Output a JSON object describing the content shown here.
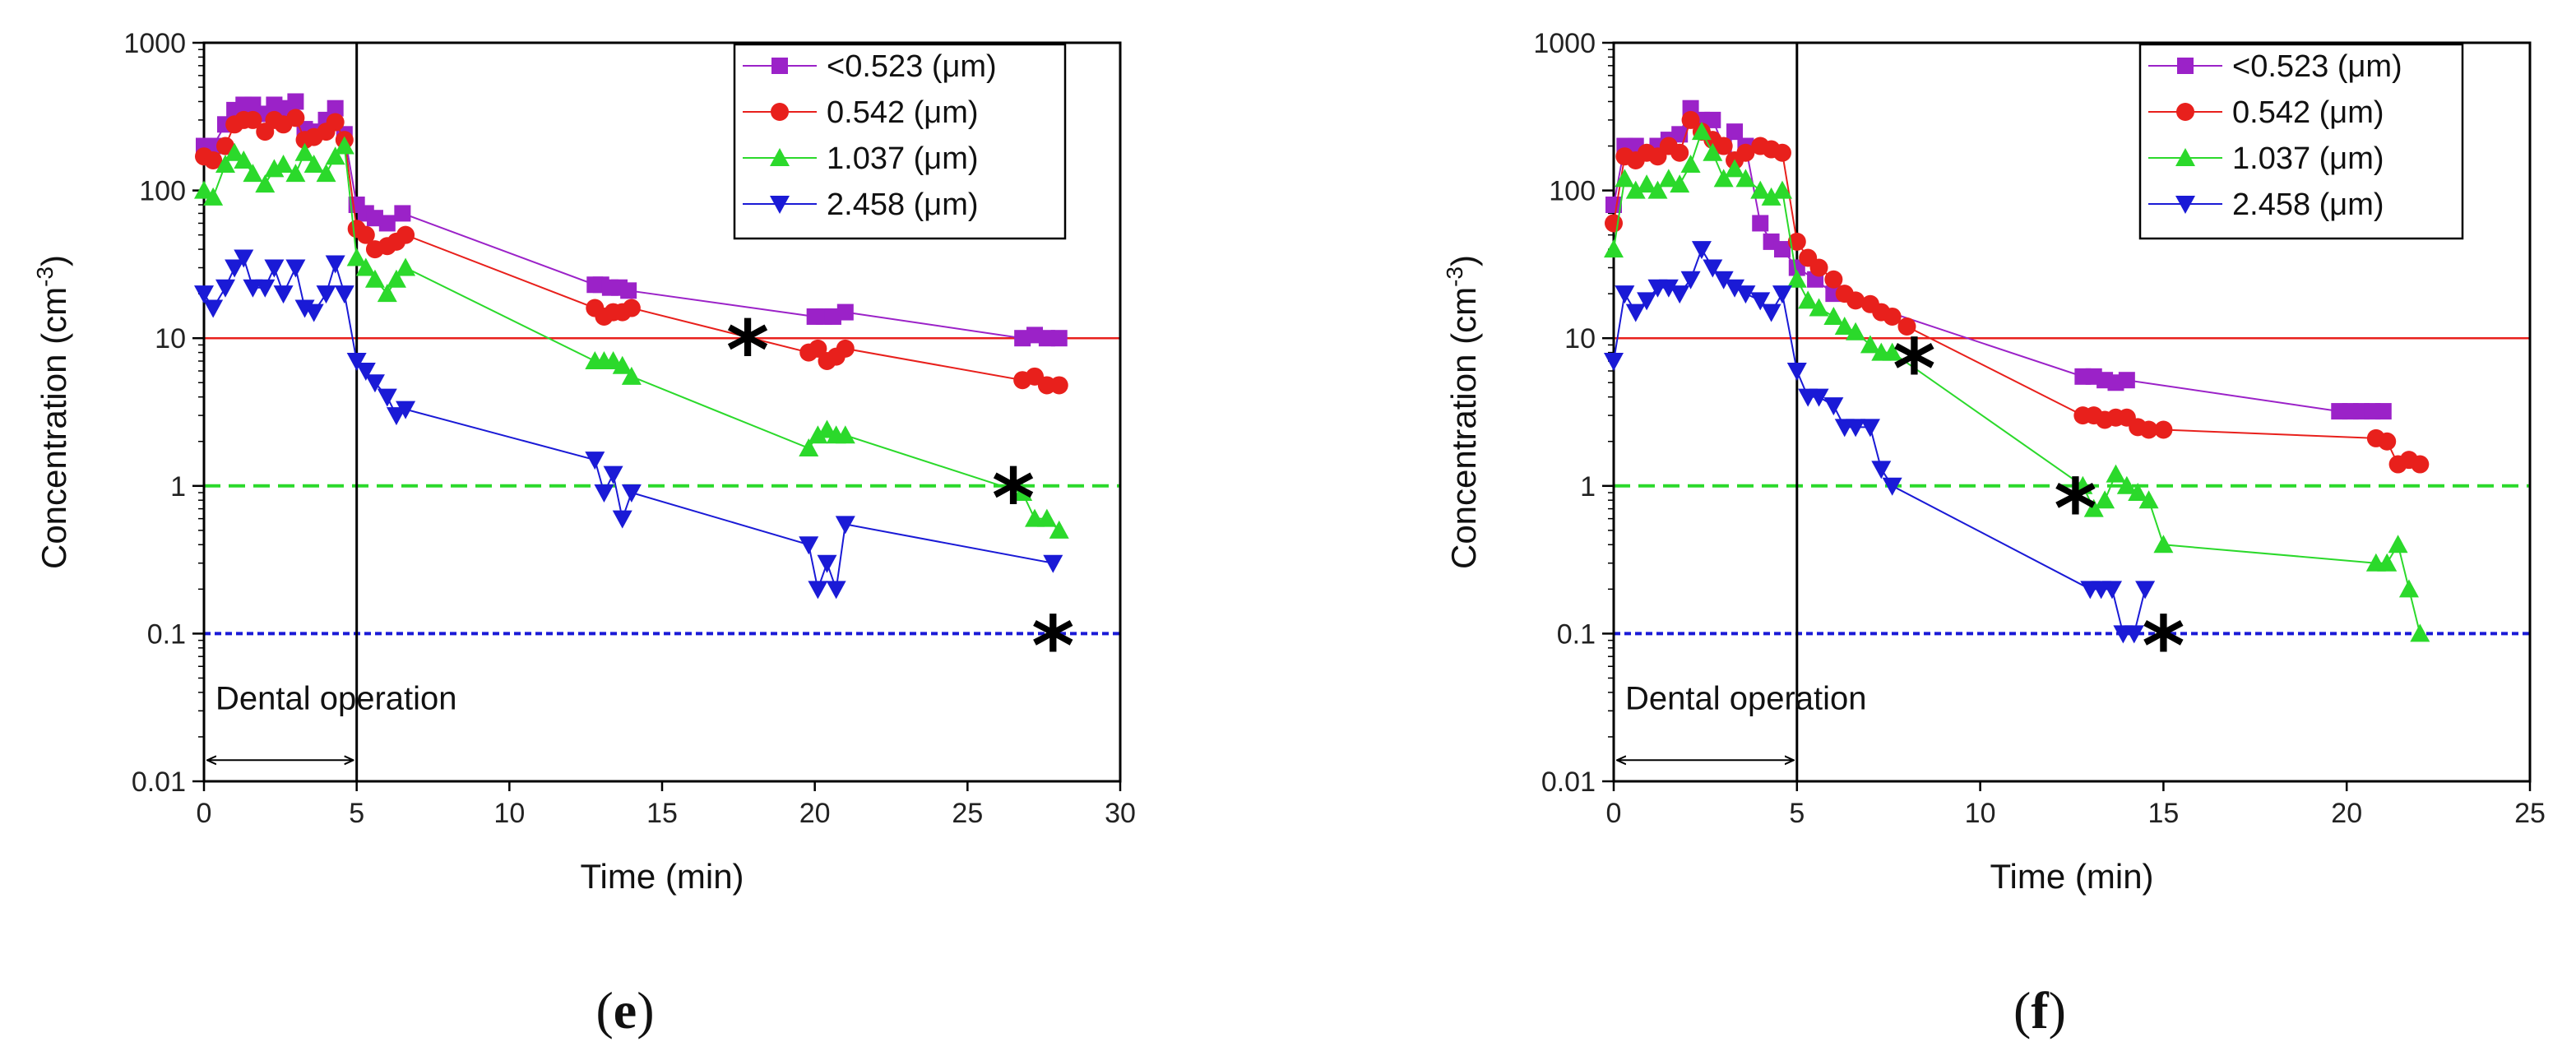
{
  "chart_data": [
    {
      "type": "scatter",
      "panel_label": "(e)",
      "title": "",
      "xlabel": "Time (min)",
      "ylabel": "Concentration (cm-3)",
      "ylabel_main": "Concentration (cm",
      "ylabel_sup": "-3",
      "ylabel_end": ")",
      "xlim": [
        0,
        30
      ],
      "ylim": [
        0.01,
        1000
      ],
      "yscale": "log",
      "xticks": [
        0,
        5,
        10,
        15,
        20,
        25,
        30
      ],
      "xtick_labels": [
        "0",
        "5",
        "10",
        "15",
        "20",
        "25",
        "30"
      ],
      "yticks": [
        0.01,
        0.1,
        1,
        10,
        100,
        1000
      ],
      "ytick_labels": [
        "0.01",
        "0.1",
        "1",
        "10",
        "100",
        "1000"
      ],
      "legend_position": "top-right",
      "grid": false,
      "reference_lines": [
        {
          "y": 10,
          "style": "solid",
          "color": "#e8201c"
        },
        {
          "y": 1,
          "style": "dashed",
          "color": "#2bd92b"
        },
        {
          "y": 0.1,
          "style": "dotted",
          "color": "#1a1ad6"
        }
      ],
      "vline_x": 5,
      "annotation": {
        "text": "Dental operation",
        "x_start": 0,
        "x_end": 5,
        "y": 0.03
      },
      "asterisks": [
        {
          "text": "*",
          "x": 17.8,
          "y": 10
        },
        {
          "text": "*",
          "x": 26.5,
          "y": 1
        },
        {
          "text": "*",
          "x": 27.8,
          "y": 0.1
        }
      ],
      "series": [
        {
          "name": "<0.523 (μm)",
          "color": "#9b22c8",
          "marker": "square",
          "x": [
            0,
            0.3,
            0.7,
            1.0,
            1.3,
            1.6,
            2.0,
            2.3,
            2.6,
            3.0,
            3.3,
            3.6,
            4.0,
            4.3,
            4.6,
            5.0,
            5.3,
            5.6,
            6.0,
            6.5,
            12.8,
            13.0,
            13.3,
            13.6,
            13.9,
            20.0,
            20.3,
            20.6,
            21.0,
            26.8,
            27.2,
            27.6,
            28.0
          ],
          "y": [
            200,
            200,
            280,
            350,
            380,
            380,
            330,
            380,
            360,
            400,
            260,
            250,
            300,
            360,
            240,
            80,
            70,
            65,
            60,
            70,
            23,
            23,
            22,
            22,
            21,
            14,
            14,
            14,
            15,
            10,
            10.5,
            10,
            10
          ]
        },
        {
          "name": "0.542 (μm)",
          "color": "#e8201c",
          "marker": "circle",
          "x": [
            0,
            0.3,
            0.7,
            1.0,
            1.3,
            1.6,
            2.0,
            2.3,
            2.6,
            3.0,
            3.3,
            3.6,
            4.0,
            4.3,
            4.6,
            5.0,
            5.3,
            5.6,
            6.0,
            6.3,
            6.6,
            12.8,
            13.1,
            13.4,
            13.7,
            14.0,
            19.8,
            20.1,
            20.4,
            20.7,
            21.0,
            26.8,
            27.2,
            27.6,
            28.0
          ],
          "y": [
            170,
            160,
            200,
            280,
            300,
            300,
            250,
            300,
            280,
            310,
            220,
            230,
            250,
            290,
            220,
            55,
            50,
            40,
            42,
            45,
            50,
            16,
            14,
            15,
            15,
            16,
            8,
            8.5,
            7,
            7.5,
            8.5,
            5.2,
            5.5,
            4.8,
            4.8
          ]
        },
        {
          "name": "1.037 (μm)",
          "color": "#2bd92b",
          "marker": "triangle-up",
          "x": [
            0,
            0.3,
            0.7,
            1.0,
            1.3,
            1.6,
            2.0,
            2.3,
            2.6,
            3.0,
            3.3,
            3.6,
            4.0,
            4.3,
            4.6,
            5.0,
            5.3,
            5.6,
            6.0,
            6.3,
            6.6,
            12.8,
            13.1,
            13.4,
            13.7,
            14.0,
            19.8,
            20.1,
            20.4,
            20.7,
            21.0,
            26.8,
            27.2,
            27.6,
            28.0
          ],
          "y": [
            100,
            90,
            150,
            180,
            160,
            130,
            110,
            140,
            150,
            130,
            180,
            150,
            130,
            170,
            200,
            35,
            30,
            25,
            20,
            25,
            30,
            7,
            7,
            7,
            6.5,
            5.5,
            1.8,
            2.2,
            2.4,
            2.2,
            2.2,
            0.9,
            0.6,
            0.6,
            0.5
          ]
        },
        {
          "name": "2.458 (μm)",
          "color": "#1a1ad6",
          "marker": "triangle-down",
          "x": [
            0,
            0.3,
            0.7,
            1.0,
            1.3,
            1.6,
            2.0,
            2.3,
            2.6,
            3.0,
            3.3,
            3.6,
            4.0,
            4.3,
            4.6,
            5.0,
            5.3,
            5.6,
            6.0,
            6.3,
            6.6,
            12.8,
            13.1,
            13.4,
            13.7,
            14.0,
            19.8,
            20.1,
            20.4,
            20.7,
            21.0,
            27.8
          ],
          "y": [
            20,
            16,
            22,
            30,
            35,
            22,
            22,
            30,
            20,
            30,
            16,
            15,
            20,
            32,
            20,
            7,
            6,
            5,
            4,
            3,
            3.3,
            1.5,
            0.9,
            1.2,
            0.6,
            0.9,
            0.4,
            0.2,
            0.3,
            0.2,
            0.55,
            0.3
          ]
        }
      ]
    },
    {
      "type": "scatter",
      "panel_label": "(f)",
      "title": "",
      "xlabel": "Time (min)",
      "ylabel": "Concentration (cm-3)",
      "ylabel_main": "Concentration (cm",
      "ylabel_sup": "-3",
      "ylabel_end": ")",
      "xlim": [
        0,
        25
      ],
      "ylim": [
        0.01,
        1000
      ],
      "yscale": "log",
      "xticks": [
        0,
        5,
        10,
        15,
        20,
        25
      ],
      "xtick_labels": [
        "0",
        "5",
        "10",
        "15",
        "20",
        "25"
      ],
      "yticks": [
        0.01,
        0.1,
        1,
        10,
        100,
        1000
      ],
      "ytick_labels": [
        "0.01",
        "0.1",
        "1",
        "10",
        "100",
        "1000"
      ],
      "legend_position": "top-right",
      "grid": false,
      "reference_lines": [
        {
          "y": 10,
          "style": "solid",
          "color": "#e8201c"
        },
        {
          "y": 1,
          "style": "dashed",
          "color": "#2bd92b"
        },
        {
          "y": 0.1,
          "style": "dotted",
          "color": "#1a1ad6"
        }
      ],
      "vline_x": 5,
      "annotation": {
        "text": "Dental operation",
        "x_start": 0,
        "x_end": 5,
        "y": 0.03
      },
      "asterisks": [
        {
          "text": "*",
          "x": 8.2,
          "y": 7.5
        },
        {
          "text": "*",
          "x": 12.6,
          "y": 0.85
        },
        {
          "text": "*",
          "x": 15.0,
          "y": 0.1
        }
      ],
      "series": [
        {
          "name": "<0.523 (μm)",
          "color": "#9b22c8",
          "marker": "square",
          "x": [
            0,
            0.3,
            0.6,
            0.9,
            1.2,
            1.5,
            1.8,
            2.1,
            2.4,
            2.7,
            3.0,
            3.3,
            3.6,
            4.0,
            4.3,
            4.6,
            5.0,
            5.5,
            6.0,
            12.8,
            13.1,
            13.4,
            13.7,
            14.0,
            19.8,
            20.1,
            20.4,
            20.7,
            21.0
          ],
          "y": [
            80,
            200,
            200,
            180,
            200,
            220,
            240,
            360,
            300,
            300,
            200,
            250,
            200,
            60,
            45,
            40,
            30,
            25,
            20,
            5.5,
            5.5,
            5.2,
            5.0,
            5.2,
            3.2,
            3.2,
            3.2,
            3.2,
            3.2
          ]
        },
        {
          "name": "0.542 (μm)",
          "color": "#e8201c",
          "marker": "circle",
          "x": [
            0,
            0.3,
            0.6,
            0.9,
            1.2,
            1.5,
            1.8,
            2.1,
            2.4,
            2.7,
            3.0,
            3.3,
            3.6,
            4.0,
            4.3,
            4.6,
            5.0,
            5.3,
            5.6,
            6.0,
            6.3,
            6.6,
            7.0,
            7.3,
            7.6,
            8.0,
            12.8,
            13.1,
            13.4,
            13.7,
            14.0,
            14.3,
            14.6,
            15.0,
            20.8,
            21.1,
            21.4,
            21.7,
            22.0
          ],
          "y": [
            60,
            170,
            160,
            180,
            170,
            200,
            180,
            300,
            250,
            220,
            200,
            160,
            180,
            200,
            190,
            180,
            45,
            35,
            30,
            25,
            20,
            18,
            17,
            15,
            14,
            12,
            3,
            3,
            2.8,
            2.9,
            2.9,
            2.5,
            2.4,
            2.4,
            2.1,
            2.0,
            1.4,
            1.5,
            1.4
          ]
        },
        {
          "name": "1.037 (μm)",
          "color": "#2bd92b",
          "marker": "triangle-up",
          "x": [
            0,
            0.3,
            0.6,
            0.9,
            1.2,
            1.5,
            1.8,
            2.1,
            2.4,
            2.7,
            3.0,
            3.3,
            3.6,
            4.0,
            4.3,
            4.6,
            5.0,
            5.3,
            5.6,
            6.0,
            6.3,
            6.6,
            7.0,
            7.3,
            7.6,
            12.8,
            13.1,
            13.4,
            13.7,
            14.0,
            14.3,
            14.6,
            15.0,
            20.8,
            21.1,
            21.4,
            21.7,
            22.0
          ],
          "y": [
            40,
            120,
            100,
            110,
            100,
            120,
            110,
            150,
            250,
            180,
            120,
            140,
            120,
            100,
            90,
            100,
            25,
            18,
            16,
            14,
            12,
            11,
            9,
            8,
            8,
            1,
            0.7,
            0.8,
            1.2,
            1.0,
            0.9,
            0.8,
            0.4,
            0.3,
            0.3,
            0.4,
            0.2,
            0.1
          ]
        },
        {
          "name": "2.458 (μm)",
          "color": "#1a1ad6",
          "marker": "triangle-down",
          "x": [
            0,
            0.3,
            0.6,
            0.9,
            1.2,
            1.5,
            1.8,
            2.1,
            2.4,
            2.7,
            3.0,
            3.3,
            3.6,
            4.0,
            4.3,
            4.6,
            5.0,
            5.3,
            5.6,
            6.0,
            6.3,
            6.6,
            7.0,
            7.3,
            7.6,
            13.0,
            13.3,
            13.6,
            13.9,
            14.2,
            14.5
          ],
          "y": [
            7,
            20,
            15,
            18,
            22,
            22,
            20,
            25,
            40,
            30,
            25,
            22,
            20,
            18,
            15,
            20,
            6,
            4,
            4,
            3.5,
            2.5,
            2.5,
            2.5,
            1.3,
            1.0,
            0.2,
            0.2,
            0.2,
            0.1,
            0.1,
            0.2
          ]
        }
      ]
    }
  ]
}
